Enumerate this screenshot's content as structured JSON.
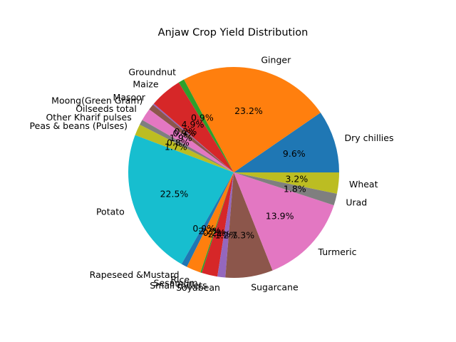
{
  "chart_data": {
    "type": "pie",
    "title": "Anjaw Crop Yield Distribution",
    "start_angle_deg": 0,
    "direction": "counterclockwise",
    "autopct_format": "%.1f%%",
    "slices": [
      {
        "label": "Dry chillies",
        "value": 9.5,
        "color": "#1f77b4"
      },
      {
        "label": "Ginger",
        "value": 23.0,
        "color": "#ff7f0e"
      },
      {
        "label": "Groundnut",
        "value": 0.9,
        "color": "#2ca02c"
      },
      {
        "label": "Maize",
        "value": 4.9,
        "color": "#d62728"
      },
      {
        "label": "Masoor",
        "value": 0.2,
        "color": "#9467bd"
      },
      {
        "label": "Moong(Green Gram)",
        "value": 0.9,
        "color": "#8c564b"
      },
      {
        "label": "Oilseeds total",
        "value": 1.9,
        "color": "#e377c2"
      },
      {
        "label": "Other Kharif pulses",
        "value": 0.8,
        "color": "#7f7f7f"
      },
      {
        "label": "Peas & beans (Pulses)",
        "value": 1.7,
        "color": "#bcbd22"
      },
      {
        "label": "Potato",
        "value": 22.3,
        "color": "#17becf"
      },
      {
        "label": "Rapeseed &Mustard",
        "value": 0.9,
        "color": "#1f77b4"
      },
      {
        "label": "Rice",
        "value": 2.2,
        "color": "#ff7f0e"
      },
      {
        "label": "Sesamum",
        "value": 0.2,
        "color": "#2ca02c"
      },
      {
        "label": "Small millets",
        "value": 2.4,
        "color": "#d62728"
      },
      {
        "label": "Soyabean",
        "value": 1.2,
        "color": "#9467bd"
      },
      {
        "label": "Sugarcane",
        "value": 7.2,
        "color": "#8c564b"
      },
      {
        "label": "Turmeric",
        "value": 13.8,
        "color": "#e377c2"
      },
      {
        "label": "Urad",
        "value": 1.8,
        "color": "#7f7f7f"
      },
      {
        "label": "Wheat",
        "value": 3.2,
        "color": "#bcbd22"
      }
    ]
  }
}
